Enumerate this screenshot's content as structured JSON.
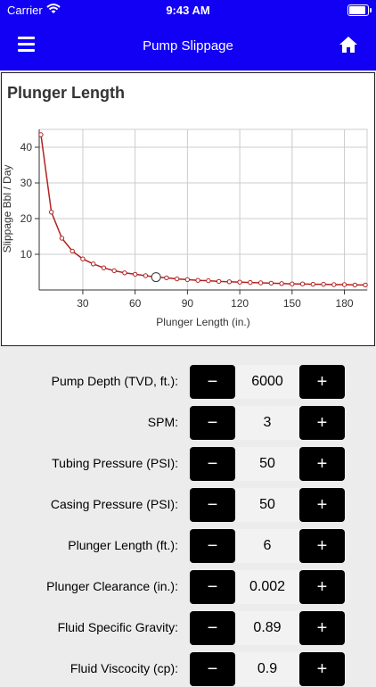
{
  "status": {
    "carrier": "Carrier",
    "time": "9:43 AM"
  },
  "nav": {
    "title": "Pump Slippage",
    "menu_icon": "hamburger-icon",
    "home_icon": "home-icon"
  },
  "chart_data": {
    "type": "line",
    "title": "Plunger Length",
    "xlabel": "Plunger Length (in.)",
    "ylabel": "Slippage Bbl / Day",
    "x_ticks": [
      30,
      60,
      90,
      120,
      150,
      180
    ],
    "y_ticks": [
      10,
      20,
      30,
      40
    ],
    "xlim": [
      5,
      193
    ],
    "ylim": [
      0,
      45
    ],
    "grid": true,
    "series": [
      {
        "color": "#b22222",
        "x": [
          6,
          12,
          18,
          24,
          30,
          36,
          42,
          48,
          54,
          60,
          66,
          72,
          78,
          84,
          90,
          96,
          102,
          108,
          114,
          120,
          126,
          132,
          138,
          144,
          150,
          156,
          162,
          168,
          174,
          180,
          186,
          192
        ],
        "y": [
          43.5,
          21.8,
          14.5,
          10.9,
          8.7,
          7.3,
          6.2,
          5.4,
          4.8,
          4.4,
          4.0,
          3.6,
          3.4,
          3.1,
          2.9,
          2.7,
          2.6,
          2.4,
          2.3,
          2.2,
          2.1,
          2.0,
          1.9,
          1.8,
          1.7,
          1.7,
          1.6,
          1.6,
          1.5,
          1.5,
          1.4,
          1.4
        ]
      }
    ],
    "highlight": {
      "x": 72,
      "y": 3.6
    }
  },
  "form": {
    "rows": [
      {
        "label": "Pump Depth (TVD, ft.):",
        "value": "6000"
      },
      {
        "label": "SPM:",
        "value": "3"
      },
      {
        "label": "Tubing Pressure (PSI):",
        "value": "50"
      },
      {
        "label": "Casing Pressure (PSI):",
        "value": "50"
      },
      {
        "label": "Plunger Length (ft.):",
        "value": "6"
      },
      {
        "label": "Plunger Clearance (in.):",
        "value": "0.002"
      },
      {
        "label": "Fluid Specific Gravity:",
        "value": "0.89"
      },
      {
        "label": "Fluid Viscocity (cp):",
        "value": "0.9"
      }
    ],
    "minus_label": "−",
    "plus_label": "+"
  }
}
